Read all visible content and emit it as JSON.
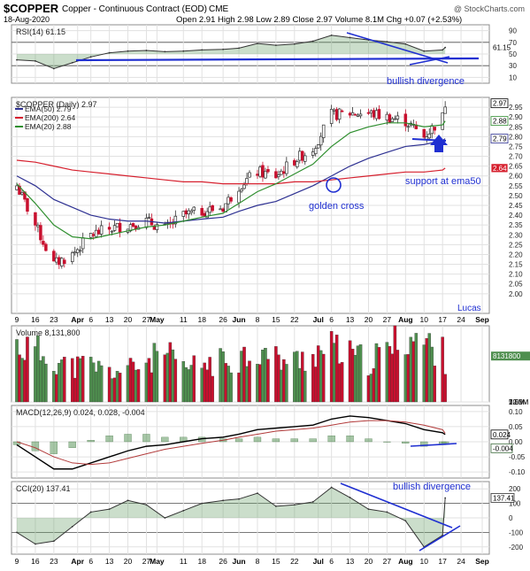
{
  "header": {
    "symbol": "$COPPER",
    "description": "Copper - Continuous Contract (EOD)",
    "exchange": "CME",
    "date": "18-Aug-2020",
    "ohlc_text": "Open 2.91  High 2.98  Low 2.89  Close 2.97  Volume 8.1M  Chg +0.07 (+2.53%)",
    "watermark": "@ StockCharts.com"
  },
  "colors": {
    "up": "#3f8f3f",
    "down": "#c8102e",
    "ema50": "#2e3192",
    "ema200": "#d6202e",
    "ema20": "#2f8f2f",
    "annotation": "#1f2fd1",
    "panel_bg": "#ffffff",
    "grid": "#e1e1e1",
    "rsi_fill": "#6aa06a"
  },
  "chart_data": [
    {
      "panel": "rsi",
      "type": "line",
      "title": "RSI(14) 61.15",
      "ylim": [
        0,
        100
      ],
      "y_ticks": [
        10,
        30,
        50,
        70,
        90
      ],
      "reference_lines": [
        30,
        70
      ],
      "last_value_label": "61.15",
      "x": [
        "2020-03-09",
        "2020-03-16",
        "2020-03-23",
        "2020-03-30",
        "2020-04-06",
        "2020-04-13",
        "2020-04-20",
        "2020-04-27",
        "2020-05-04",
        "2020-05-11",
        "2020-05-18",
        "2020-05-26",
        "2020-06-01",
        "2020-06-08",
        "2020-06-15",
        "2020-06-22",
        "2020-06-29",
        "2020-07-06",
        "2020-07-13",
        "2020-07-20",
        "2020-07-27",
        "2020-08-03",
        "2020-08-10",
        "2020-08-17",
        "2020-08-18"
      ],
      "values": [
        40,
        38,
        25,
        35,
        45,
        52,
        55,
        56,
        54,
        55,
        57,
        58,
        60,
        68,
        65,
        67,
        72,
        82,
        78,
        74,
        71,
        67,
        55,
        57,
        61.15
      ],
      "annotation": "bullish divergence"
    },
    {
      "panel": "price",
      "type": "candlestick",
      "title": "$COPPER (Daily) 2.97",
      "ylim": [
        1.9,
        3.0
      ],
      "y_ticks": [
        "2.00",
        "2.05",
        "2.10",
        "2.15",
        "2.20",
        "2.25",
        "2.30",
        "2.35",
        "2.40",
        "2.45",
        "2.50",
        "2.55",
        "2.60",
        "2.65",
        "2.70",
        "2.75",
        "2.80",
        "2.85",
        "2.90",
        "2.95"
      ],
      "x": [
        "2020-03-09",
        "2020-03-16",
        "2020-03-23",
        "2020-03-30",
        "2020-04-06",
        "2020-04-13",
        "2020-04-20",
        "2020-04-27",
        "2020-05-04",
        "2020-05-11",
        "2020-05-18",
        "2020-05-26",
        "2020-06-01",
        "2020-06-08",
        "2020-06-15",
        "2020-06-22",
        "2020-06-29",
        "2020-07-06",
        "2020-07-13",
        "2020-07-20",
        "2020-07-27",
        "2020-08-03",
        "2020-08-10",
        "2020-08-17",
        "2020-08-18"
      ],
      "close": [
        2.55,
        2.35,
        2.15,
        2.2,
        2.3,
        2.33,
        2.35,
        2.37,
        2.33,
        2.4,
        2.42,
        2.44,
        2.55,
        2.62,
        2.6,
        2.68,
        2.74,
        2.91,
        2.92,
        2.92,
        2.9,
        2.88,
        2.8,
        2.9,
        2.97
      ],
      "series": [
        {
          "name": "EMA(50) 2.79",
          "values": [
            2.6,
            2.55,
            2.48,
            2.44,
            2.4,
            2.38,
            2.37,
            2.37,
            2.36,
            2.37,
            2.38,
            2.39,
            2.42,
            2.45,
            2.47,
            2.51,
            2.55,
            2.6,
            2.65,
            2.69,
            2.72,
            2.75,
            2.76,
            2.78,
            2.79
          ]
        },
        {
          "name": "EMA(200) 2.64",
          "values": [
            2.68,
            2.67,
            2.65,
            2.63,
            2.62,
            2.61,
            2.6,
            2.59,
            2.58,
            2.57,
            2.57,
            2.56,
            2.56,
            2.56,
            2.56,
            2.57,
            2.57,
            2.58,
            2.59,
            2.6,
            2.61,
            2.62,
            2.62,
            2.63,
            2.64
          ]
        },
        {
          "name": "EMA(20) 2.88",
          "values": [
            2.56,
            2.46,
            2.35,
            2.29,
            2.28,
            2.3,
            2.32,
            2.34,
            2.35,
            2.37,
            2.39,
            2.41,
            2.46,
            2.52,
            2.56,
            2.61,
            2.66,
            2.75,
            2.82,
            2.85,
            2.87,
            2.87,
            2.85,
            2.86,
            2.88
          ]
        }
      ],
      "last_labels": {
        "close": "2.97",
        "ema20": "2.88",
        "ema50": "2.79",
        "ema200": "2.64"
      },
      "annotations": [
        "support at ema50",
        "golden cross",
        "Lucas"
      ]
    },
    {
      "panel": "volume",
      "type": "bar",
      "title": "Volume 8,131,800",
      "ylim": [
        0,
        13500000
      ],
      "y_ticks": [
        "2.5M",
        "5.0M",
        "7.5M",
        "10.0M",
        "12.5M"
      ],
      "last_value_label": "8131800",
      "x": [
        "2020-03-09",
        "2020-03-16",
        "2020-03-23",
        "2020-03-30",
        "2020-04-06",
        "2020-04-13",
        "2020-04-20",
        "2020-04-27",
        "2020-05-04",
        "2020-05-11",
        "2020-05-18",
        "2020-05-26",
        "2020-06-01",
        "2020-06-08",
        "2020-06-15",
        "2020-06-22",
        "2020-06-29",
        "2020-07-06",
        "2020-07-13",
        "2020-07-20",
        "2020-07-27",
        "2020-08-03",
        "2020-08-10",
        "2020-08-17",
        "2020-08-18"
      ],
      "values": [
        10500000,
        9500000,
        8000000,
        6500000,
        7000000,
        5500000,
        6000000,
        7500000,
        9000000,
        6000000,
        7000000,
        7500000,
        8500000,
        9500000,
        8000000,
        7500000,
        9000000,
        10000000,
        8500000,
        7500000,
        9500000,
        12500000,
        11000000,
        9000000,
        8131800
      ]
    },
    {
      "panel": "macd",
      "type": "line",
      "title": "MACD(12,26,9) 0.024, 0.028, -0.004",
      "ylim": [
        -0.12,
        0.12
      ],
      "y_ticks": [
        "-0.10",
        "-0.05",
        "0.00",
        "0.05",
        "0.10"
      ],
      "x": [
        "2020-03-09",
        "2020-03-16",
        "2020-03-23",
        "2020-03-30",
        "2020-04-06",
        "2020-04-13",
        "2020-04-20",
        "2020-04-27",
        "2020-05-04",
        "2020-05-11",
        "2020-05-18",
        "2020-05-26",
        "2020-06-01",
        "2020-06-08",
        "2020-06-15",
        "2020-06-22",
        "2020-06-29",
        "2020-07-06",
        "2020-07-13",
        "2020-07-20",
        "2020-07-27",
        "2020-08-03",
        "2020-08-10",
        "2020-08-17",
        "2020-08-18"
      ],
      "series": [
        {
          "name": "MACD",
          "values": [
            -0.01,
            -0.05,
            -0.09,
            -0.09,
            -0.07,
            -0.05,
            -0.03,
            -0.015,
            -0.01,
            0.0,
            0.01,
            0.015,
            0.025,
            0.04,
            0.045,
            0.05,
            0.055,
            0.075,
            0.085,
            0.08,
            0.07,
            0.06,
            0.04,
            0.03,
            0.024
          ]
        },
        {
          "name": "Signal",
          "values": [
            0.0,
            -0.02,
            -0.05,
            -0.07,
            -0.075,
            -0.07,
            -0.055,
            -0.04,
            -0.025,
            -0.015,
            -0.005,
            0.005,
            0.015,
            0.025,
            0.035,
            0.04,
            0.045,
            0.055,
            0.065,
            0.07,
            0.07,
            0.065,
            0.055,
            0.04,
            0.028
          ]
        },
        {
          "name": "Histogram",
          "values": [
            -0.01,
            -0.03,
            -0.04,
            -0.02,
            0.005,
            0.02,
            0.025,
            0.025,
            0.015,
            0.015,
            0.015,
            0.01,
            0.01,
            0.015,
            0.01,
            0.01,
            0.01,
            0.02,
            0.02,
            0.01,
            0.0,
            -0.005,
            -0.015,
            -0.01,
            -0.004
          ]
        }
      ],
      "last_labels": {
        "macd": "0.024",
        "histogram": "-0.004"
      }
    },
    {
      "panel": "cci",
      "type": "line",
      "title": "CCI(20) 137.41",
      "ylim": [
        -250,
        250
      ],
      "y_ticks": [
        "-200",
        "-100",
        "0",
        "100",
        "200"
      ],
      "reference_lines": [
        -100,
        100
      ],
      "last_value_label": "137.41",
      "x": [
        "2020-03-09",
        "2020-03-16",
        "2020-03-23",
        "2020-03-30",
        "2020-04-06",
        "2020-04-13",
        "2020-04-20",
        "2020-04-27",
        "2020-05-04",
        "2020-05-11",
        "2020-05-18",
        "2020-05-26",
        "2020-06-01",
        "2020-06-08",
        "2020-06-15",
        "2020-06-22",
        "2020-06-29",
        "2020-07-06",
        "2020-07-13",
        "2020-07-20",
        "2020-07-27",
        "2020-08-03",
        "2020-08-10",
        "2020-08-17",
        "2020-08-18"
      ],
      "values": [
        -100,
        -180,
        -160,
        -60,
        40,
        60,
        120,
        90,
        0,
        50,
        100,
        120,
        130,
        170,
        80,
        90,
        110,
        210,
        140,
        60,
        40,
        -20,
        -200,
        -120,
        137.41
      ],
      "annotation": "bullish divergence"
    }
  ],
  "x_axis": {
    "tick_labels": [
      "9",
      "16",
      "23",
      "Apr",
      "6",
      "13",
      "20",
      "27",
      "May",
      "11",
      "18",
      "26",
      "Jun",
      "8",
      "15",
      "22",
      "Jul",
      "6",
      "13",
      "20",
      "27",
      "Aug",
      "10",
      "17",
      "24",
      "Sep"
    ],
    "bold_labels": [
      "Apr",
      "May",
      "Jun",
      "Jul",
      "Aug",
      "Sep"
    ]
  }
}
